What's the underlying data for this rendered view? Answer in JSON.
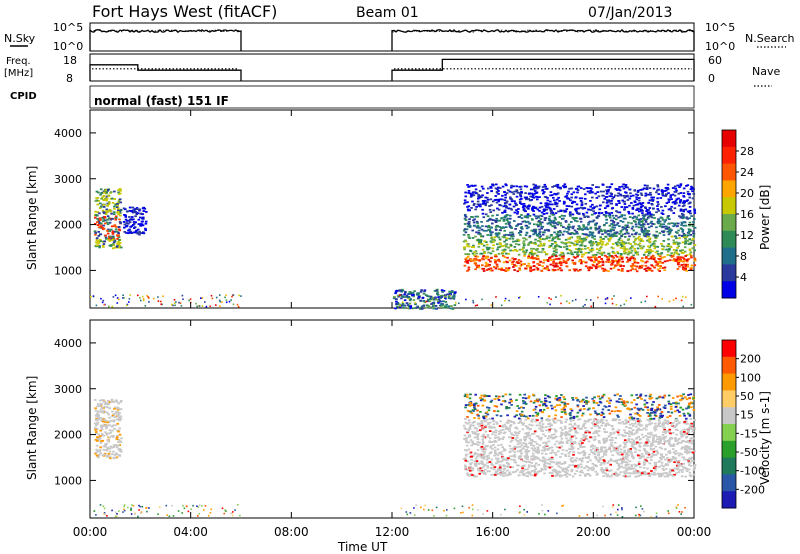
{
  "header": {
    "radar": "Fort Hays West (fitACF)",
    "beam": "Beam 01",
    "date": "07/Jan/2013"
  },
  "noise_panel": {
    "left_label": "N.Sky",
    "right_label": "N.Search",
    "left_ticks": [
      "10^5",
      "10^0"
    ],
    "right_ticks": [
      "10^5",
      "10^0"
    ]
  },
  "freq_panel": {
    "left_label_1": "Freq.",
    "left_label_2": "[MHz]",
    "right_label": "Nave",
    "left_ticks": [
      "18",
      "8"
    ],
    "right_ticks": [
      "60",
      "0"
    ]
  },
  "cpid_panel": {
    "label": "CPID",
    "text": "normal (fast) 151 IF"
  },
  "x_axis": {
    "label": "Time UT",
    "ticks": [
      "00:00",
      "04:00",
      "08:00",
      "12:00",
      "16:00",
      "20:00",
      "00:00"
    ]
  },
  "colors": {
    "power_scale": [
      "#0000e6",
      "#2a3a9c",
      "#1f6e8a",
      "#2e8b57",
      "#6aaa4a",
      "#c8c800",
      "#ffa500",
      "#ff5500",
      "#ff2200",
      "#e60000"
    ],
    "velocity_scale": [
      "#1c1cb4",
      "#2a56a8",
      "#1e7a5a",
      "#2aa02a",
      "#86d050",
      "#c8c8c8",
      "#ffcc66",
      "#ff9900",
      "#ff5a00",
      "#ff0000"
    ]
  },
  "chart_data": [
    {
      "type": "line",
      "panel": "noise",
      "xlabel": "",
      "x_range_hours": [
        0,
        24
      ],
      "series": [
        {
          "name": "N.Sky",
          "segments": [
            {
              "x": [
                0,
                6
              ],
              "level": "10^5"
            },
            {
              "x": [
                12,
                24
              ],
              "level": "10^5"
            }
          ]
        },
        {
          "name": "N.Search",
          "segments": [
            {
              "x": [
                0,
                6
              ],
              "level": "10^5"
            },
            {
              "x": [
                12,
                24
              ],
              "level": "10^5"
            }
          ]
        }
      ]
    },
    {
      "type": "line",
      "panel": "frequency",
      "x_range_hours": [
        0,
        24
      ],
      "series": [
        {
          "name": "Freq. [MHz]",
          "ylim": [
            8,
            18
          ],
          "points": [
            [
              0,
              14
            ],
            [
              1.9,
              14
            ],
            [
              1.9,
              12
            ],
            [
              6,
              12
            ],
            [
              12,
              12
            ],
            [
              14,
              12
            ],
            [
              14,
              16
            ],
            [
              24,
              16
            ]
          ]
        },
        {
          "name": "Nave",
          "ylim": [
            0,
            60
          ],
          "points": [
            [
              0,
              27
            ],
            [
              6,
              27
            ],
            [
              12,
              27
            ],
            [
              24,
              27
            ]
          ]
        }
      ]
    },
    {
      "type": "heatmap",
      "panel": "power",
      "title": "",
      "xlabel": "Time UT",
      "ylabel": "Slant Range [km]",
      "x_range_hours": [
        0,
        24
      ],
      "ylim": [
        180,
        4500
      ],
      "y_ticks": [
        1000,
        2000,
        3000,
        4000
      ],
      "colorbar": {
        "label": "Power [dB]",
        "ticks": [
          4,
          8,
          12,
          16,
          20,
          24,
          28
        ],
        "range": [
          0,
          32
        ]
      },
      "regions": [
        {
          "t": [
            0.15,
            1.2
          ],
          "range_km": [
            1500,
            2800
          ],
          "typical_db": 20
        },
        {
          "t": [
            1.3,
            2.2
          ],
          "range_km": [
            1800,
            2400
          ],
          "typical_db": 6
        },
        {
          "t": [
            14.8,
            24
          ],
          "range_km": [
            1000,
            2900
          ],
          "typical_db": 16,
          "peak_band": "1100-1800 km near 27 dB"
        },
        {
          "t": [
            12.0,
            14.5
          ],
          "range_km": [
            180,
            600
          ],
          "typical_db": 6
        }
      ]
    },
    {
      "type": "heatmap",
      "panel": "velocity",
      "xlabel": "Time UT",
      "ylabel": "Slant Range [km]",
      "x_range_hours": [
        0,
        24
      ],
      "ylim": [
        180,
        4500
      ],
      "y_ticks": [
        1000,
        2000,
        3000,
        4000
      ],
      "colorbar": {
        "label": "Velocity [m s-1]",
        "ticks": [
          200,
          100,
          50,
          15,
          -15,
          -50,
          -100,
          -200
        ],
        "range": [
          -250,
          250
        ]
      },
      "regions": [
        {
          "t": [
            0.15,
            1.2
          ],
          "range_km": [
            1500,
            2800
          ],
          "typical_ms": 0
        },
        {
          "t": [
            14.8,
            24
          ],
          "range_km": [
            1100,
            2900
          ],
          "typical_ms": 0
        }
      ]
    }
  ]
}
